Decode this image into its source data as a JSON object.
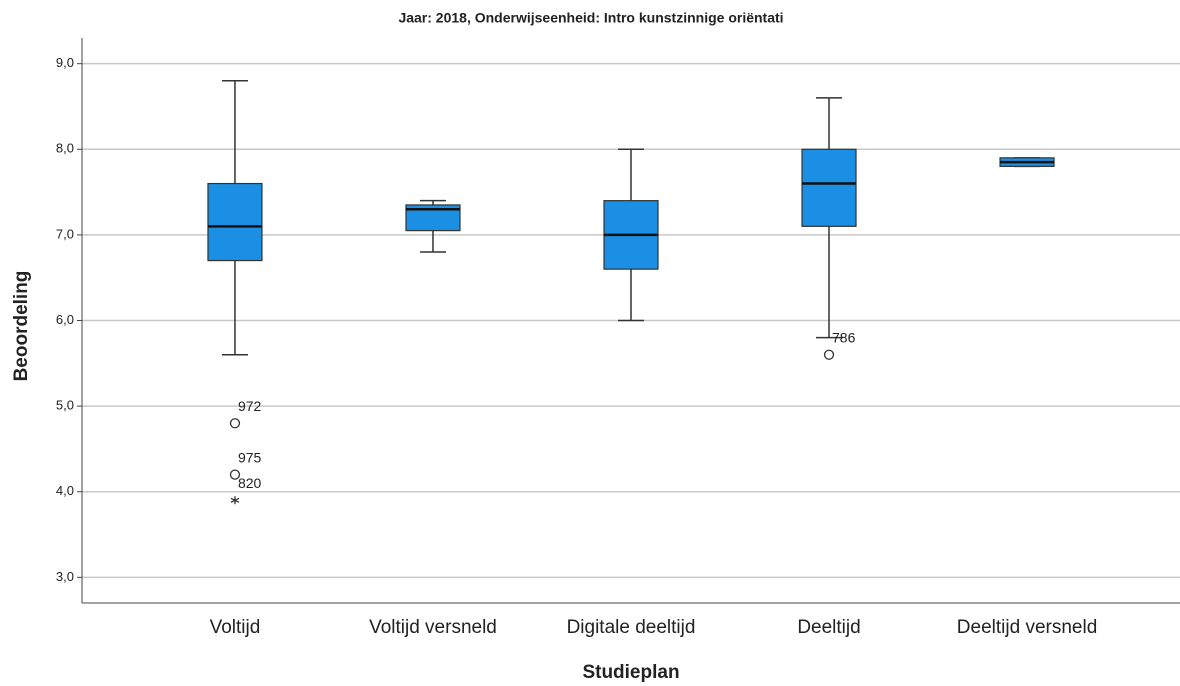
{
  "chart_data": {
    "type": "boxplot",
    "title": "Jaar: 2018, Onderwijseenheid: Intro kunstzinnige oriëntati",
    "x_label": "Studieplan",
    "y_label": "Beoordeling",
    "color": "#1a8fe3",
    "grid": true,
    "ylim": [
      2.7,
      9.3
    ],
    "yticks": [
      {
        "value": 3,
        "label": "3,0"
      },
      {
        "value": 4,
        "label": "4,0"
      },
      {
        "value": 5,
        "label": "5,0"
      },
      {
        "value": 6,
        "label": "6,0"
      },
      {
        "value": 7,
        "label": "7,0"
      },
      {
        "value": 8,
        "label": "8,0"
      },
      {
        "value": 9,
        "label": "9,0"
      }
    ],
    "boxes": [
      {
        "category": "Voltijd",
        "low": 5.6,
        "q1": 6.7,
        "median": 7.1,
        "q3": 7.6,
        "high": 8.8,
        "outliers": [
          {
            "value": 4.8,
            "label": "972",
            "marker": "circle"
          },
          {
            "value": 4.2,
            "label": "975",
            "marker": "circle"
          },
          {
            "value": 3.9,
            "label": "820",
            "marker": "star"
          }
        ]
      },
      {
        "category": "Voltijd versneld",
        "low": 6.8,
        "q1": 7.05,
        "median": 7.3,
        "q3": 7.35,
        "high": 7.4,
        "outliers": []
      },
      {
        "category": "Digitale deeltijd",
        "low": 6.0,
        "q1": 6.6,
        "median": 7.0,
        "q3": 7.4,
        "high": 8.0,
        "outliers": []
      },
      {
        "category": "Deeltijd",
        "low": 5.8,
        "q1": 7.1,
        "median": 7.6,
        "q3": 8.0,
        "high": 8.6,
        "outliers": [
          {
            "value": 5.6,
            "label": "786",
            "marker": "circle"
          }
        ]
      },
      {
        "category": "Deeltijd versneld",
        "low": 7.8,
        "q1": 7.8,
        "median": 7.85,
        "q3": 7.9,
        "high": 7.9,
        "outliers": []
      }
    ]
  }
}
